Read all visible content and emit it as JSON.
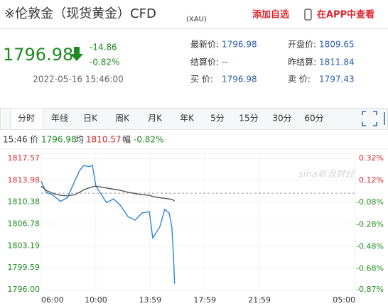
{
  "header": {
    "title": "※伦敦金（现货黄金）CFD",
    "code": "(XAU)",
    "add": "添加自选",
    "app": "在APP中查看"
  },
  "quote": {
    "price": 1796.98,
    "change": -14.86,
    "pct": "-0.82%",
    "time": "2022-05-16 15:46:00"
  },
  "stats": [
    {
      "label": "最新价:",
      "value": 1796.98
    },
    {
      "label": "开盘价:",
      "value": 1809.65
    },
    {
      "label": "结算价:",
      "value": "--"
    },
    {
      "label": "昨结算:",
      "value": 1811.84
    },
    {
      "label": "买  价:",
      "value": 1796.98
    },
    {
      "label": "卖  价:",
      "value": 1797.43
    }
  ],
  "tabs": [
    "分时",
    "年线",
    "日K",
    "周K",
    "月K",
    "年K",
    "5分",
    "15分",
    "30分",
    "60分"
  ],
  "info": {
    "time": "15:46",
    "price_label": "价",
    "price": 1796.98,
    "avg_label": "均",
    "avg": 1810.57,
    "pct_label": "幅",
    "pct": "-0.82%"
  },
  "watermark": "sina新浪财经",
  "chart_data": {
    "type": "line",
    "x": [
      0,
      22,
      53,
      84,
      115,
      147,
      169,
      187,
      209,
      225,
      240,
      256,
      287,
      318,
      349,
      381,
      412,
      443,
      475,
      490,
      521,
      543,
      562,
      574,
      581,
      586
    ],
    "series": [
      {
        "color": "#2e86d4",
        "values": [
          1813.8,
          1812.0,
          1811.5,
          1810.5,
          1811.1,
          1813.8,
          1815.6,
          1816.4,
          1816.2,
          1816.4,
          1813.0,
          1812.1,
          1810.3,
          1810.9,
          1809.8,
          1808.0,
          1807.4,
          1808.6,
          1808.8,
          1804.5,
          1806.3,
          1809.2,
          1808.6,
          1806.3,
          1801.6,
          1796.98
        ]
      },
      {
        "color": "#555555",
        "values": [
          1813.0,
          1812.3,
          1811.8,
          1811.5,
          1811.4,
          1811.6,
          1812.0,
          1812.4,
          1812.7,
          1812.9,
          1813.0,
          1812.9,
          1812.7,
          1812.5,
          1812.3,
          1812.0,
          1811.8,
          1811.6,
          1811.5,
          1811.3,
          1811.1,
          1811.0,
          1810.9,
          1810.8,
          1810.7,
          1810.57
        ]
      }
    ],
    "xlim": [
      0,
      1380
    ],
    "xticks": [
      {
        "value": 0,
        "label": "06:00"
      },
      {
        "value": 240,
        "label": "10:00"
      },
      {
        "value": 479,
        "label": "13:59"
      },
      {
        "value": 719,
        "label": "17:59"
      },
      {
        "value": 959,
        "label": "21:59"
      },
      {
        "value": 1380,
        "label": "05:00"
      }
    ],
    "ylim": [
      1796.0,
      1817.57
    ],
    "yticks": [
      1817.57,
      1813.98,
      1810.38,
      1806.78,
      1803.19,
      1799.59,
      {
        "value": 1796,
        "label": "1796.00"
      }
    ],
    "y2lim": [
      -0.87,
      0.32
    ],
    "y2ticks": [
      {
        "value": 0.32,
        "label": "0.32%"
      },
      {
        "value": 0.12,
        "label": "0.12%"
      },
      {
        "value": -0.08,
        "label": "-0.08%"
      },
      {
        "value": -0.28,
        "label": "-0.28%"
      },
      {
        "value": -0.48,
        "label": "-0.48%"
      },
      {
        "value": -0.68,
        "label": "-0.68%"
      },
      {
        "value": -0.87,
        "label": "-0.87%"
      }
    ],
    "grid": true
  }
}
